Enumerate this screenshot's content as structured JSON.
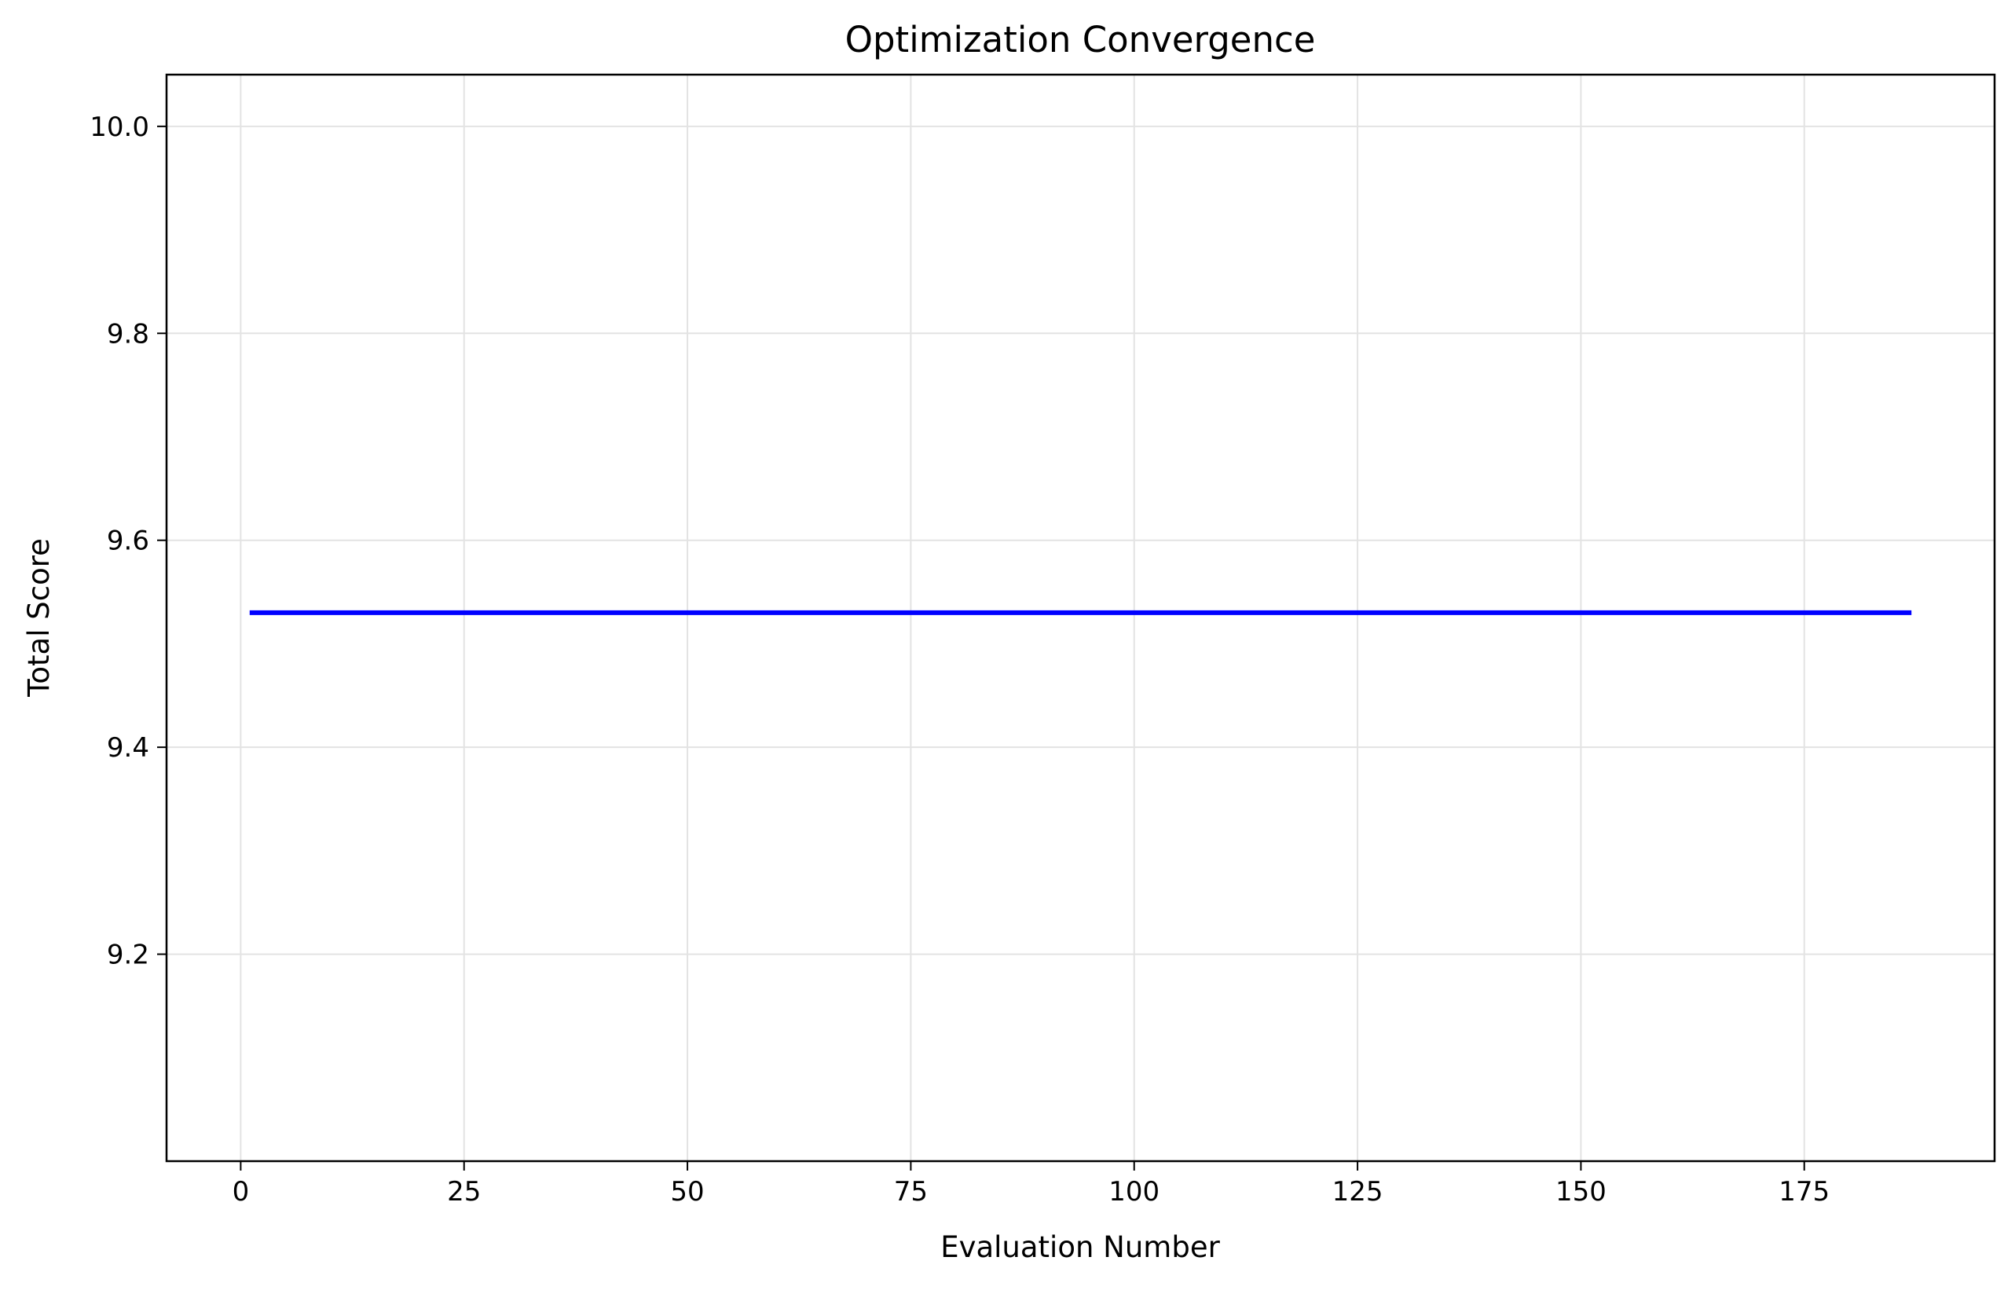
{
  "chart_data": {
    "type": "line",
    "title": "Optimization Convergence",
    "xlabel": "Evaluation Number",
    "ylabel": "Total Score",
    "xlim": [
      -8.3,
      196.3
    ],
    "ylim": [
      9.0,
      10.05
    ],
    "x_ticks": [
      0,
      25,
      50,
      75,
      100,
      125,
      150,
      175
    ],
    "y_ticks": [
      9.2,
      9.4,
      9.6,
      9.8,
      10.0
    ],
    "x_tick_labels": [
      "0",
      "25",
      "50",
      "75",
      "100",
      "125",
      "150",
      "175"
    ],
    "y_tick_labels": [
      "9.2",
      "9.4",
      "9.6",
      "9.8",
      "10.0"
    ],
    "grid": true,
    "legend": "none",
    "series": [
      {
        "color": "#0000ff",
        "x": [
          1,
          187
        ],
        "y": [
          9.53,
          9.53
        ]
      }
    ]
  }
}
